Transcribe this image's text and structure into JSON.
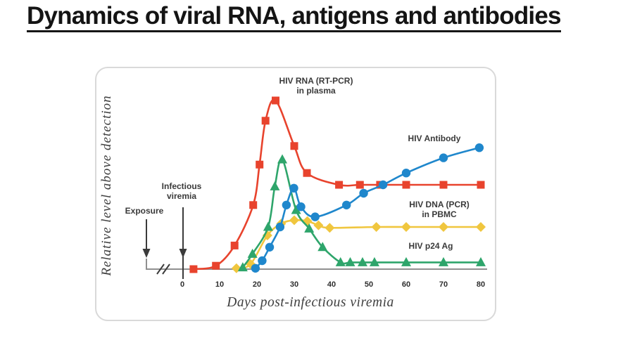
{
  "page": {
    "title": "Dynamics of viral RNA, antigens and antibodies"
  },
  "chart_data": {
    "type": "line",
    "title": "",
    "xlabel": "Days post-infectious viremia",
    "ylabel": "Relative level above detection",
    "x_ticks": [
      "0",
      "10",
      "20",
      "30",
      "40",
      "50",
      "60",
      "70",
      "80"
    ],
    "xlim": [
      0,
      80
    ],
    "ylim": [
      0,
      105
    ],
    "grid": false,
    "legend_position": "inline-labels",
    "axis_break_before_zero": true,
    "axis_color": "#909090",
    "annotation_color": "#3b3b3b",
    "annotations": {
      "exposure": "Exposure",
      "infectious_viremia": "Infectious\nviremia"
    },
    "series": [
      {
        "name": "HIV RNA (RT-PCR) in plasma",
        "label": "HIV RNA (RT-PCR)\nin plasma",
        "marker": "square",
        "color": "#E8432D",
        "points": [
          [
            3,
            0
          ],
          [
            9,
            2
          ],
          [
            14,
            14
          ],
          [
            19,
            38
          ],
          [
            20.7,
            62
          ],
          [
            22.3,
            88
          ],
          [
            25,
            100
          ],
          [
            30,
            73
          ],
          [
            33.4,
            57
          ],
          [
            42,
            50
          ],
          [
            47.6,
            50
          ],
          [
            53,
            50
          ],
          [
            60,
            50
          ],
          [
            70,
            50
          ],
          [
            80,
            50
          ]
        ]
      },
      {
        "name": "HIV DNA (PCR) in PBMC",
        "label": "HIV DNA (PCR)\nin PBMC",
        "marker": "diamond",
        "color": "#F0C63E",
        "points": [
          [
            14.5,
            0.5
          ],
          [
            18.3,
            3
          ],
          [
            22.8,
            20
          ],
          [
            26.5,
            27
          ],
          [
            30,
            29
          ],
          [
            33.5,
            28.5
          ],
          [
            36.5,
            26
          ],
          [
            39.5,
            24.5
          ],
          [
            52,
            25
          ],
          [
            60,
            25
          ],
          [
            70,
            25
          ],
          [
            80,
            25
          ]
        ]
      },
      {
        "name": "HIV p24 Ag",
        "label": "HIV p24 Ag",
        "marker": "triangle",
        "color": "#2EA56B",
        "points": [
          [
            16.2,
            1
          ],
          [
            18.8,
            9
          ],
          [
            23,
            25
          ],
          [
            24.8,
            49
          ],
          [
            26.8,
            65
          ],
          [
            30.5,
            35
          ],
          [
            34,
            24
          ],
          [
            37.6,
            13
          ],
          [
            42.4,
            4
          ],
          [
            45,
            4
          ],
          [
            48.3,
            4
          ],
          [
            51.5,
            4
          ],
          [
            60,
            4
          ],
          [
            70,
            4
          ],
          [
            80,
            4
          ]
        ]
      },
      {
        "name": "HIV Antibody",
        "label": "HIV Antibody",
        "marker": "circle",
        "color": "#1F87CC",
        "points": [
          [
            19.6,
            0.5
          ],
          [
            21.4,
            5
          ],
          [
            23.4,
            13
          ],
          [
            26.2,
            25
          ],
          [
            27.9,
            38
          ],
          [
            29.9,
            48
          ],
          [
            31.8,
            37
          ],
          [
            35.6,
            31
          ],
          [
            44,
            38
          ],
          [
            48.6,
            45
          ],
          [
            53.8,
            50
          ],
          [
            60,
            57
          ],
          [
            70,
            66
          ],
          [
            79.6,
            72
          ]
        ]
      }
    ]
  }
}
